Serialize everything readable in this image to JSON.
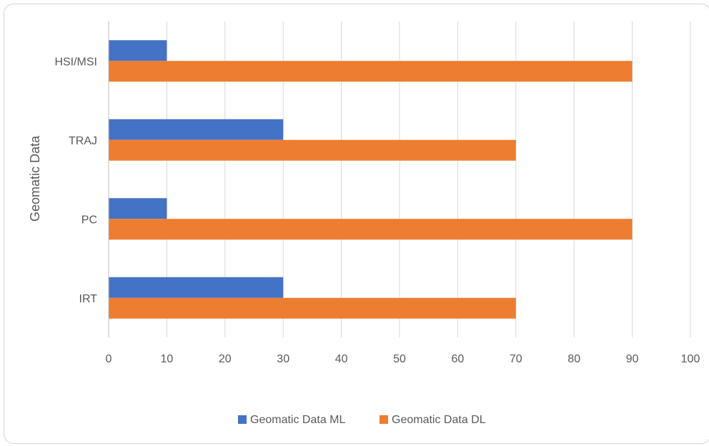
{
  "chart_data": {
    "type": "bar",
    "orientation": "horizontal",
    "categories": [
      "HSI/MSI",
      "TRAJ",
      "PC",
      "IRT"
    ],
    "series": [
      {
        "name": "Geomatic Data ML",
        "color": "#4472C4",
        "values": [
          10,
          30,
          10,
          30
        ]
      },
      {
        "name": "Geomatic Data DL",
        "color": "#ED7D31",
        "values": [
          90,
          70,
          90,
          70
        ]
      }
    ],
    "x_ticks": [
      0,
      10,
      20,
      30,
      40,
      50,
      60,
      70,
      80,
      90,
      100
    ],
    "xlim": [
      0,
      100
    ],
    "ylabel": "Geomatic Data",
    "xlabel": "",
    "grid": "vertical",
    "legend": "bottom"
  }
}
